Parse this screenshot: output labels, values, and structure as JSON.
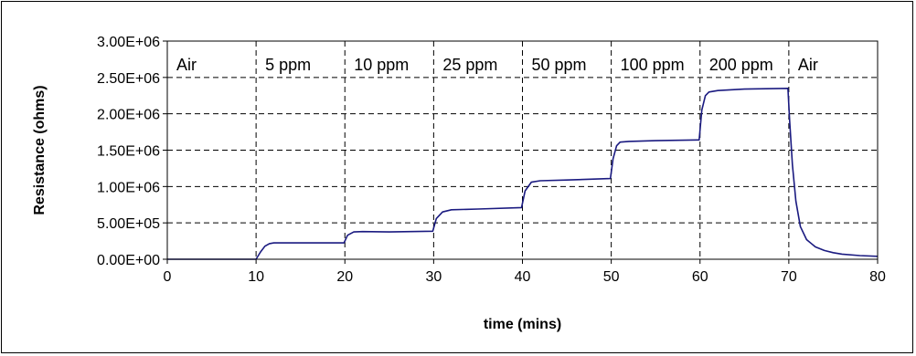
{
  "chart_data": {
    "type": "line",
    "title": "",
    "xlabel": "time (mins)",
    "ylabel": "Resistance (ohms)",
    "xlim": [
      0,
      80
    ],
    "ylim": [
      0,
      3000000
    ],
    "x_ticks": [
      0,
      10,
      20,
      30,
      40,
      50,
      60,
      70,
      80
    ],
    "x_tick_labels": [
      "0",
      "10",
      "20",
      "30",
      "40",
      "50",
      "60",
      "70",
      "80"
    ],
    "y_ticks": [
      0,
      500000,
      1000000,
      1500000,
      2000000,
      2500000,
      3000000
    ],
    "y_tick_labels": [
      "0.00E+00",
      "5.00E+05",
      "1.00E+06",
      "1.50E+06",
      "2.00E+06",
      "2.50E+06",
      "3.00E+06"
    ],
    "grid": true,
    "legend": "none",
    "line_color": "#1a1a80",
    "phase_boundaries": [
      10,
      20,
      30,
      40,
      50,
      60,
      70
    ],
    "phase_labels": [
      {
        "text": "Air",
        "x_start": 0
      },
      {
        "text": "5 ppm",
        "x_start": 10
      },
      {
        "text": "10 ppm",
        "x_start": 20
      },
      {
        "text": "25 ppm",
        "x_start": 30
      },
      {
        "text": "50 ppm",
        "x_start": 40
      },
      {
        "text": "100 ppm",
        "x_start": 50
      },
      {
        "text": "200 ppm",
        "x_start": 60
      },
      {
        "text": "Air",
        "x_start": 70
      }
    ],
    "series": [
      {
        "x": [
          0,
          10,
          10.5,
          11,
          11.5,
          12,
          15,
          19.9,
          20.3,
          21,
          22,
          25,
          29.9,
          30.3,
          31,
          32,
          35,
          39.9,
          40.3,
          41,
          42,
          45,
          49.9,
          50.2,
          50.6,
          51,
          52,
          55,
          59.9,
          60.2,
          60.6,
          61,
          62,
          65,
          69.9,
          70.1,
          70.4,
          70.8,
          71.3,
          72,
          73,
          74,
          75,
          76,
          78,
          80
        ],
        "y": [
          0,
          0,
          100000,
          180000,
          215000,
          225000,
          225000,
          225000,
          330000,
          375000,
          380000,
          375000,
          385000,
          560000,
          650000,
          680000,
          690000,
          710000,
          940000,
          1060000,
          1080000,
          1090000,
          1110000,
          1380000,
          1560000,
          1610000,
          1620000,
          1630000,
          1640000,
          2050000,
          2250000,
          2300000,
          2320000,
          2340000,
          2350000,
          1900000,
          1300000,
          800000,
          450000,
          270000,
          170000,
          120000,
          90000,
          70000,
          50000,
          40000
        ]
      }
    ]
  }
}
